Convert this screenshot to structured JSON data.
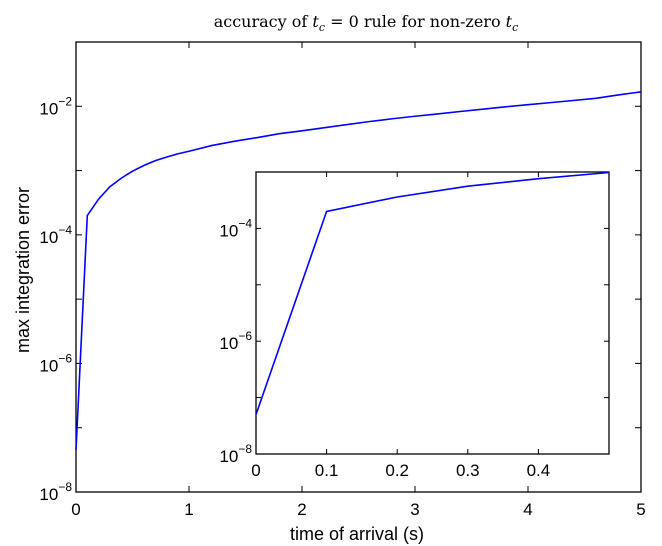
{
  "chart_data": [
    {
      "type": "line",
      "title_parts": [
        "accuracy of ",
        "t",
        "c",
        " = 0 rule for non-zero ",
        "t",
        "c"
      ],
      "xlabel": "time of arrival (s)",
      "ylabel": "max integration error",
      "xscale": "linear",
      "yscale": "log",
      "xlim": [
        0,
        5
      ],
      "ylim": [
        1e-08,
        0.1
      ],
      "x_ticks": [
        "0",
        "1",
        "2",
        "3",
        "4",
        "5"
      ],
      "y_ticks": [
        {
          "base": "10",
          "exp": "−8"
        },
        {
          "base": "10",
          "exp": "−6"
        },
        {
          "base": "10",
          "exp": "−4"
        },
        {
          "base": "10",
          "exp": "−2"
        }
      ],
      "grid": false,
      "series": [
        {
          "color": "#0000ff",
          "x": [
            0,
            0.1,
            0.2,
            0.3,
            0.4,
            0.5,
            0.6,
            0.7,
            0.8,
            0.9,
            1.0,
            1.2,
            1.4,
            1.6,
            1.8,
            2.0,
            2.2,
            2.4,
            2.6,
            2.8,
            3.0,
            3.2,
            3.4,
            3.6,
            3.8,
            4.0,
            4.2,
            4.4,
            4.6,
            4.8,
            5.0
          ],
          "y": [
            4.5e-08,
            0.0002,
            0.00036,
            0.00056,
            0.00076,
            0.00098,
            0.0012,
            0.00142,
            0.00162,
            0.00182,
            0.002,
            0.00245,
            0.00285,
            0.00325,
            0.00375,
            0.00415,
            0.00465,
            0.0052,
            0.0058,
            0.0064,
            0.007,
            0.0076,
            0.0083,
            0.009,
            0.0098,
            0.0106,
            0.0114,
            0.0123,
            0.0133,
            0.015,
            0.0168
          ]
        }
      ]
    },
    {
      "type": "line",
      "inset": true,
      "xscale": "linear",
      "yscale": "log",
      "xlim": [
        0,
        0.5
      ],
      "ylim": [
        1e-08,
        0.001
      ],
      "x_ticks": [
        "0",
        "0.1",
        "0.2",
        "0.3",
        "0.4"
      ],
      "y_ticks": [
        {
          "base": "10",
          "exp": "−8"
        },
        {
          "base": "10",
          "exp": "−6"
        },
        {
          "base": "10",
          "exp": "−4"
        }
      ],
      "grid": false,
      "series": [
        {
          "color": "#0000ff",
          "x": [
            0,
            0.1,
            0.2,
            0.3,
            0.4,
            0.5
          ],
          "y": [
            5e-08,
            0.0002,
            0.00036,
            0.00056,
            0.00076,
            0.00098
          ]
        }
      ]
    }
  ]
}
